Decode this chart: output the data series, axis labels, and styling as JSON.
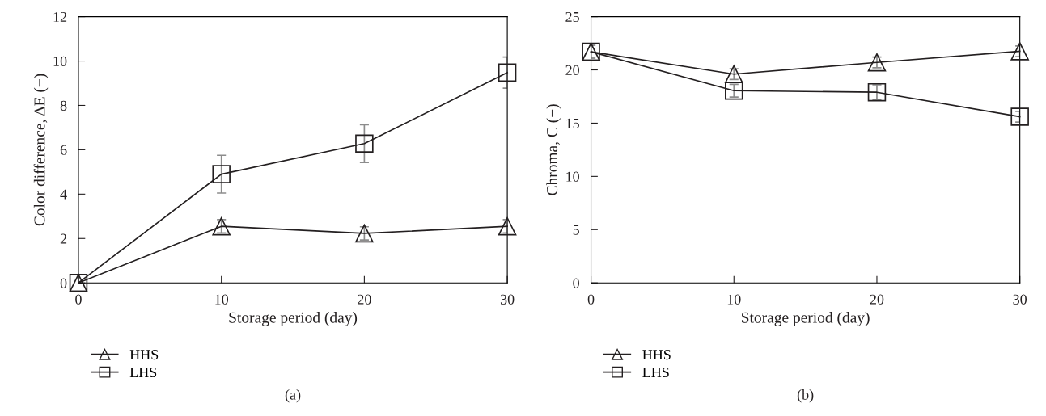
{
  "chart_data": [
    {
      "type": "line",
      "xlabel": "Storage period (day)",
      "ylabel": "Color difference, ΔE (−)",
      "x": [
        0,
        10,
        20,
        30
      ],
      "xlim": [
        0,
        30
      ],
      "xticks": [
        0,
        10,
        20,
        30
      ],
      "ylim": [
        0,
        12
      ],
      "yticks": [
        0,
        2,
        4,
        6,
        8,
        10,
        12
      ],
      "grid": false,
      "legend": "bottom left",
      "annotations": [
        "(a)"
      ],
      "series": [
        {
          "name": "HHS",
          "color": "#231f20",
          "marker": "triangle",
          "values": [
            0,
            2.55,
            2.23,
            2.55
          ],
          "errors": [
            null,
            0.3,
            0.3,
            0.3
          ]
        },
        {
          "name": "LHS",
          "color": "#231f20",
          "marker": "square",
          "values": [
            0,
            4.9,
            6.28,
            9.48
          ],
          "errors": [
            null,
            0.85,
            0.85,
            0.7
          ]
        }
      ]
    },
    {
      "type": "line",
      "xlabel": "Storage period (day)",
      "ylabel": "Chroma, C (−)",
      "x": [
        0,
        10,
        20,
        30
      ],
      "xlim": [
        0,
        30
      ],
      "xticks": [
        0,
        10,
        20,
        30
      ],
      "ylim": [
        0,
        25
      ],
      "yticks": [
        0,
        5,
        10,
        15,
        20,
        25
      ],
      "grid": false,
      "legend": "bottom left",
      "annotations": [
        "(b)"
      ],
      "series": [
        {
          "name": "HHS",
          "color": "#231f20",
          "marker": "triangle",
          "values": [
            21.7,
            19.6,
            20.7,
            21.75
          ],
          "errors": [
            0.6,
            0.5,
            0.5,
            0.5
          ]
        },
        {
          "name": "LHS",
          "color": "#231f20",
          "marker": "square",
          "values": [
            21.7,
            18.05,
            17.9,
            15.6
          ],
          "errors": [
            0.6,
            0.6,
            0.7,
            0.5
          ]
        }
      ]
    }
  ]
}
